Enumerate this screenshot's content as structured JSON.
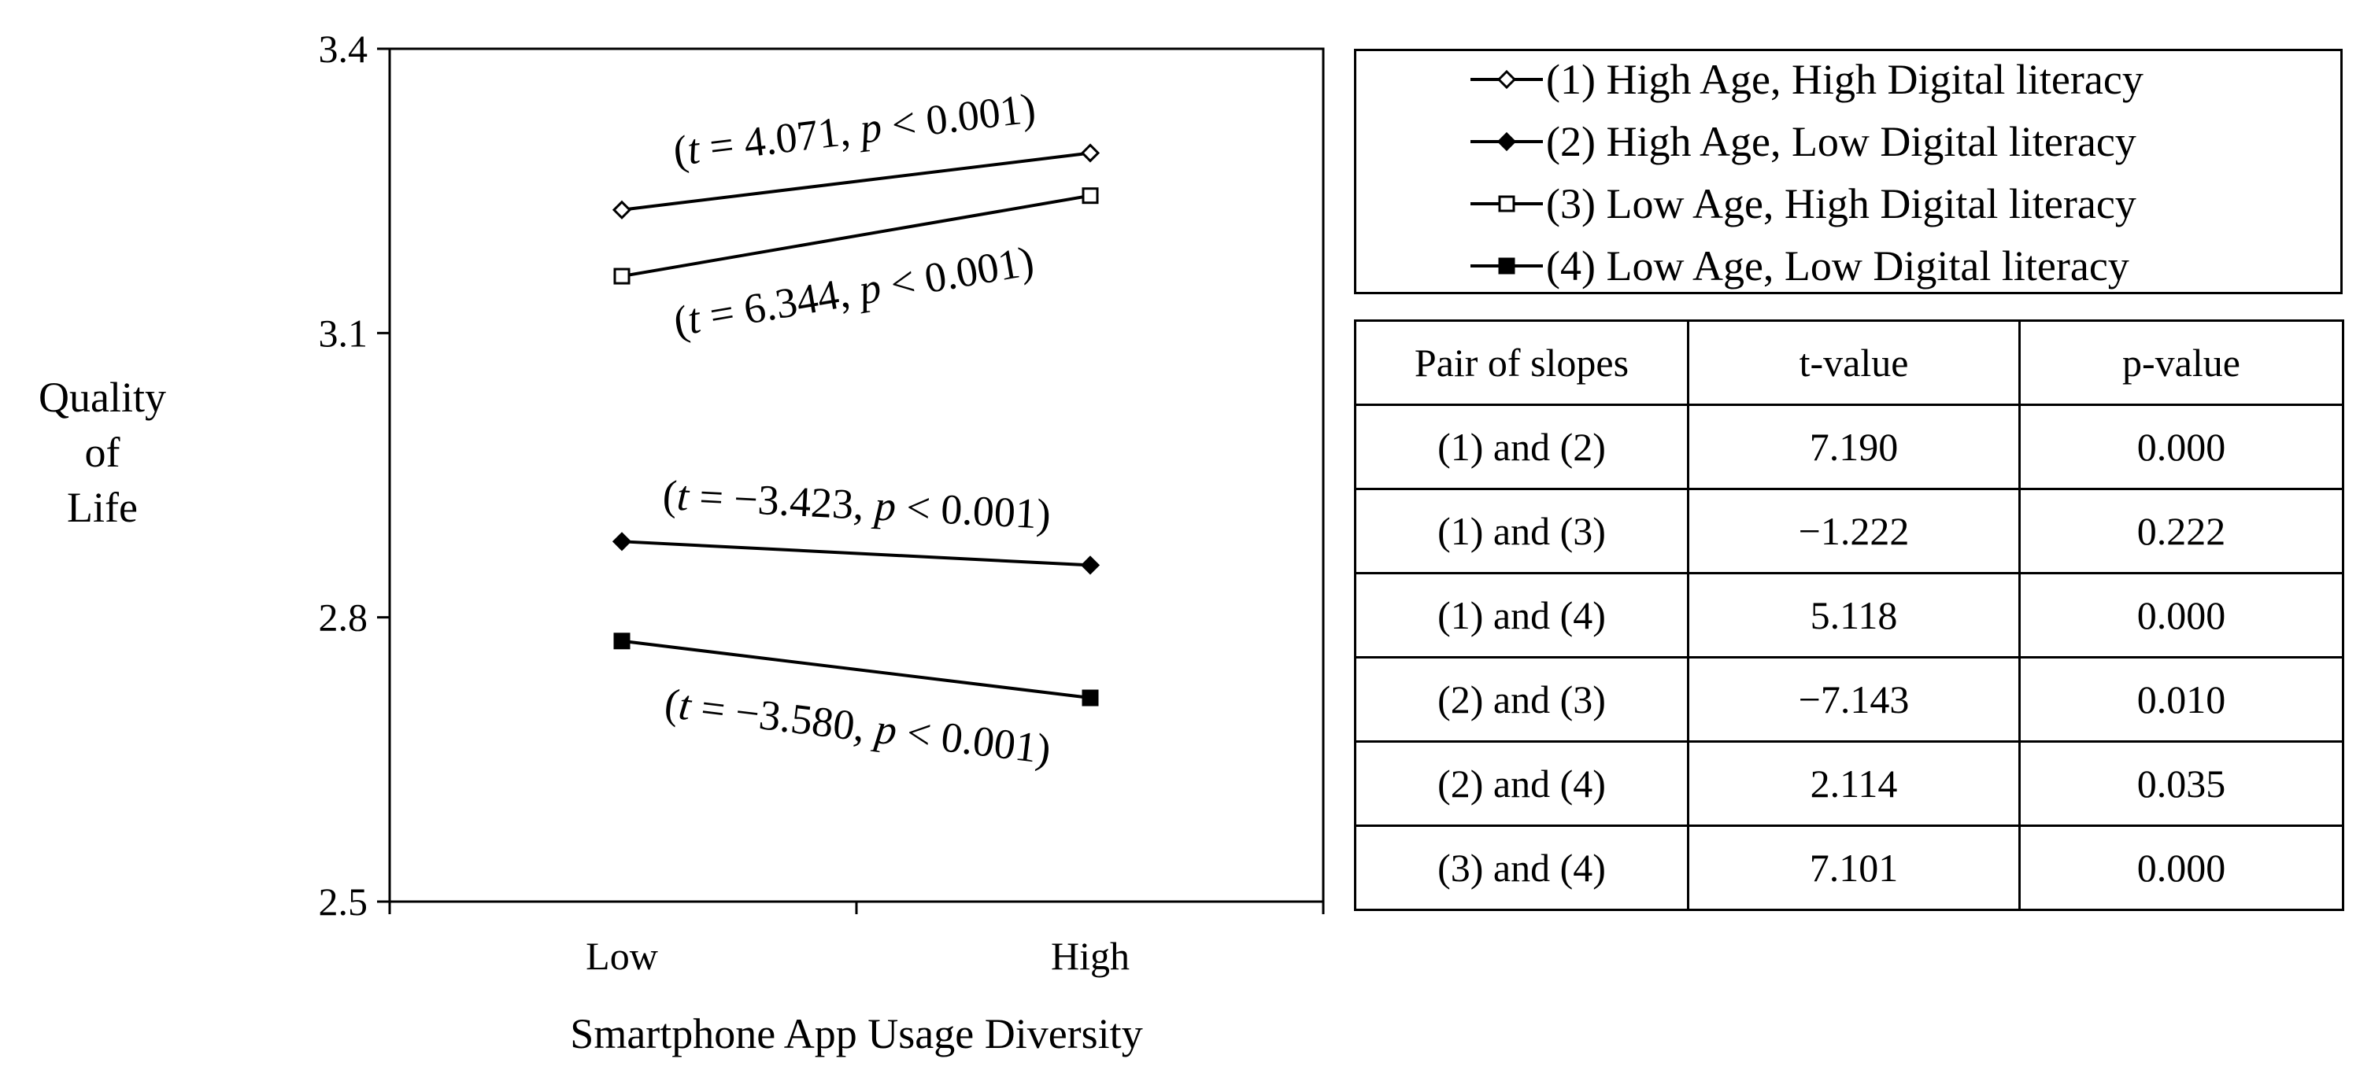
{
  "chart_data": {
    "type": "line",
    "title": "",
    "xlabel": "Smartphone App Usage Diversity",
    "ylabel_lines": [
      "Quality",
      "of",
      "Life"
    ],
    "categories": [
      "Low",
      "High"
    ],
    "ylim": [
      2.5,
      3.4
    ],
    "yticks": [
      "3.4",
      "3.1",
      "2.8",
      "2.5"
    ],
    "ytick_values": [
      3.4,
      3.1,
      2.8,
      2.5
    ],
    "grid": false,
    "legend_placement": "top-right",
    "series": [
      {
        "name": "(1) High Age, High Digital literacy",
        "marker": "diamond-open",
        "values": [
          3.23,
          3.29
        ],
        "annotation": "(t = 4.071, p < 0.001)"
      },
      {
        "name": "(2) High Age, Low Digital literacy",
        "marker": "diamond-filled",
        "values": [
          2.88,
          2.855
        ],
        "annotation": "(t = −3.423, p < 0.001)"
      },
      {
        "name": "(3) Low Age, High Digital literacy",
        "marker": "square-open",
        "values": [
          3.16,
          3.245
        ],
        "annotation": "(t = 6.344, p < 0.001)"
      },
      {
        "name": "(4) Low Age, Low Digital literacy",
        "marker": "square-filled",
        "values": [
          2.775,
          2.715
        ],
        "annotation": "(t = −3.580, p < 0.001)"
      }
    ],
    "line_color": "#000000"
  },
  "comparison_table": {
    "headers": [
      "Pair of slopes",
      "t-value",
      "p-value"
    ],
    "rows": [
      [
        "(1) and (2)",
        "7.190",
        "0.000"
      ],
      [
        "(1) and (3)",
        "−1.222",
        "0.222"
      ],
      [
        "(1) and (4)",
        "5.118",
        "0.000"
      ],
      [
        "(2) and (3)",
        "−7.143",
        "0.010"
      ],
      [
        "(2) and (4)",
        "2.114",
        "0.035"
      ],
      [
        "(3) and (4)",
        "7.101",
        "0.000"
      ]
    ]
  }
}
